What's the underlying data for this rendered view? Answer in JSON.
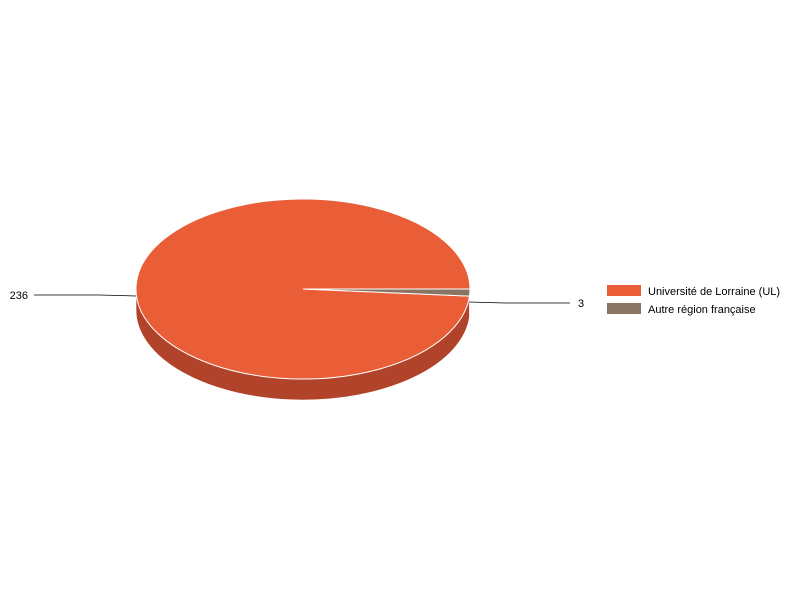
{
  "chart_data": {
    "type": "pie",
    "style": "3d",
    "title": "",
    "slices": [
      {
        "label": "Université de Lorraine (UL)",
        "value": 236,
        "color": "#e95d37",
        "side_color": "#b0432a"
      },
      {
        "label": "Autre région française",
        "value": 3,
        "color": "#8a7564",
        "side_color": "#6b5a4c"
      }
    ],
    "data_labels": [
      "236",
      "3"
    ],
    "legend_position": "right"
  }
}
